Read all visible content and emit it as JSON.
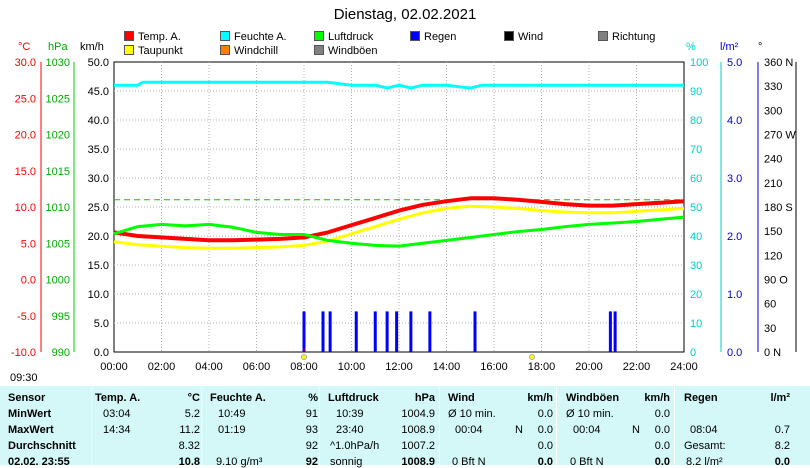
{
  "title": "Dienstag, 02.02.2021",
  "current_time": "09:30",
  "legend": [
    {
      "label": "Temp. A.",
      "color": "#ff0000"
    },
    {
      "label": "Taupunkt",
      "color": "#ffff00"
    },
    {
      "label": "Feuchte A.",
      "color": "#00ffff"
    },
    {
      "label": "Windchill",
      "color": "#ff8000"
    },
    {
      "label": "Luftdruck",
      "color": "#00ff00"
    },
    {
      "label": "Windböen",
      "color": "#808080"
    },
    {
      "label": "Regen",
      "color": "#0000ff"
    },
    {
      "label": "Wind",
      "color": "#000000"
    },
    {
      "label": "Richtung",
      "color": "#808080"
    }
  ],
  "units": {
    "temp": "°C",
    "pressure": "hPa",
    "wind": "km/h",
    "humidity": "%",
    "rain": "l/m²",
    "direction": "°"
  },
  "chart_data": {
    "type": "line",
    "x_ticks": [
      "00:00",
      "02:00",
      "04:00",
      "06:00",
      "08:00",
      "10:00",
      "12:00",
      "14:00",
      "16:00",
      "18:00",
      "20:00",
      "22:00",
      "24:00"
    ],
    "axes": {
      "temp": {
        "ticks": [
          "30.0",
          "25.0",
          "20.0",
          "15.0",
          "10.0",
          "5.0",
          "0.0",
          "-5.0",
          "-10.0"
        ],
        "range": [
          -10,
          30
        ],
        "color": "#ff0000"
      },
      "pressure": {
        "ticks": [
          "1030",
          "1025",
          "1020",
          "1015",
          "1010",
          "1005",
          "1000",
          "995",
          "990"
        ],
        "range": [
          990,
          1030
        ],
        "color": "#00aa00"
      },
      "wind": {
        "ticks": [
          "50.0",
          "45.0",
          "40.0",
          "35.0",
          "30.0",
          "25.0",
          "20.0",
          "15.0",
          "10.0",
          "5.0",
          "0.0"
        ],
        "range": [
          0,
          50
        ],
        "color": "#000000"
      },
      "humidity": {
        "ticks": [
          "100",
          "90",
          "80",
          "70",
          "60",
          "50",
          "40",
          "30",
          "20",
          "10",
          "0"
        ],
        "range": [
          0,
          100
        ],
        "color": "#00cccc"
      },
      "rain": {
        "ticks": [
          "5.0",
          "4.0",
          "3.0",
          "2.0",
          "1.0",
          "0.0"
        ],
        "range": [
          0,
          5
        ],
        "color": "#0000cc"
      },
      "direction": {
        "ticks": [
          "360 N",
          "330",
          "300",
          "270 W",
          "240",
          "210",
          "180 S",
          "150",
          "120",
          "90 O",
          "60",
          "30",
          "0 N"
        ],
        "range": [
          0,
          360
        ],
        "color": "#000000"
      }
    },
    "series": [
      {
        "name": "Temp. A.",
        "axis": "temp",
        "color": "#ff0000",
        "width": 4,
        "x": [
          0,
          1,
          2,
          3,
          4,
          5,
          6,
          7,
          8,
          9,
          10,
          11,
          12,
          13,
          14,
          15,
          16,
          17,
          18,
          19,
          20,
          21,
          22,
          23,
          24
        ],
        "y": [
          6.5,
          6.0,
          5.8,
          5.6,
          5.4,
          5.4,
          5.5,
          5.6,
          5.8,
          6.5,
          7.5,
          8.5,
          9.5,
          10.3,
          10.8,
          11.2,
          11.2,
          11.0,
          10.7,
          10.4,
          10.2,
          10.2,
          10.4,
          10.6,
          10.8
        ]
      },
      {
        "name": "Taupunkt",
        "axis": "temp",
        "color": "#ffff00",
        "width": 3,
        "x": [
          0,
          1,
          2,
          3,
          4,
          5,
          6,
          7,
          8,
          9,
          10,
          11,
          12,
          13,
          14,
          15,
          16,
          17,
          18,
          19,
          20,
          21,
          22,
          23,
          24
        ],
        "y": [
          5.2,
          4.8,
          4.6,
          4.4,
          4.3,
          4.3,
          4.4,
          4.5,
          4.7,
          5.3,
          6.3,
          7.3,
          8.3,
          9.2,
          9.8,
          10.1,
          10.0,
          9.8,
          9.5,
          9.3,
          9.2,
          9.2,
          9.4,
          9.6,
          9.8
        ]
      },
      {
        "name": "Feuchte A.",
        "axis": "humidity",
        "color": "#00ffff",
        "width": 3,
        "x": [
          0,
          1,
          1.2,
          2,
          4,
          6,
          8,
          9,
          10,
          11,
          11.5,
          12,
          12.5,
          13,
          14,
          15,
          15.5,
          16,
          18,
          20,
          22,
          24
        ],
        "y": [
          92,
          92,
          93,
          93,
          93,
          93,
          93,
          93,
          92,
          92,
          91,
          92,
          91,
          92,
          92,
          91,
          92,
          92,
          92,
          92,
          92,
          92
        ]
      },
      {
        "name": "Luftdruck",
        "axis": "pressure",
        "color": "#00ff00",
        "width": 3,
        "x": [
          0,
          1,
          2,
          3,
          4,
          5,
          6,
          7,
          8,
          9,
          10,
          11,
          12,
          13,
          14,
          15,
          16,
          17,
          18,
          19,
          20,
          21,
          22,
          23,
          24
        ],
        "y": [
          1006.3,
          1007.3,
          1007.6,
          1007.4,
          1007.6,
          1007.2,
          1006.5,
          1006.2,
          1006.2,
          1005.4,
          1005.0,
          1004.7,
          1004.6,
          1005.0,
          1005.4,
          1005.8,
          1006.2,
          1006.6,
          1006.9,
          1007.3,
          1007.6,
          1007.8,
          1008.0,
          1008.3,
          1008.6
        ]
      }
    ],
    "rain_bars": {
      "axis": "rain",
      "color": "#0000ff",
      "x": [
        8.0,
        8.8,
        9.1,
        10.2,
        11.0,
        11.5,
        11.9,
        12.5,
        13.3,
        15.2,
        20.9,
        21.1
      ],
      "y": [
        0.7,
        0.7,
        0.7,
        0.7,
        0.7,
        0.7,
        0.7,
        0.7,
        0.7,
        0.7,
        0.7,
        0.7
      ]
    },
    "reference_line": {
      "axis": "temp",
      "value": 11.0,
      "color": "#00cc00",
      "style": "dashed"
    }
  },
  "summary": {
    "row_labels": [
      "Sensor",
      "MinWert",
      "MaxWert",
      "Durchschnitt",
      "02.02. 23:55"
    ],
    "headers": [
      {
        "label": "Temp. A.",
        "unit": "°C"
      },
      {
        "label": "Feuchte A.",
        "unit": "%"
      },
      {
        "label": "Luftdruck",
        "unit": "hPa"
      },
      {
        "label": "Wind",
        "unit": "km/h"
      },
      {
        "label": "Windböen",
        "unit": "km/h"
      },
      {
        "label": "Regen",
        "unit": "l/m²"
      }
    ],
    "temp": {
      "min_time": "03:04",
      "min": "5.2",
      "max_time": "14:34",
      "max": "11.2",
      "avg": "8.32",
      "cur": "10.8"
    },
    "humidity": {
      "min_time": "10:49",
      "min": "91",
      "max_time": "01:19",
      "max": "93",
      "avg": "92",
      "cur_extra": "9.10 g/m³",
      "cur": "92"
    },
    "pressure": {
      "min_time": "10:39",
      "min": "1004.9",
      "max_time": "23:40",
      "max": "1008.9",
      "avg_label": "^1.0hPa/h",
      "avg": "1007.2",
      "cur_label": "sonnig",
      "cur": "1008.9"
    },
    "wind": {
      "min_label": "Ø 10 min.",
      "min": "0.0",
      "max_time": "00:04",
      "max_dir": "N",
      "max": "0.0",
      "avg": "0.0",
      "cur_label": "0 Bft N",
      "cur": "0.0"
    },
    "gust": {
      "min_label": "Ø 10 min.",
      "min": "0.0",
      "max_time": "00:04",
      "max_dir": "N",
      "max": "0.0",
      "avg": "0.0",
      "cur_label": "0 Bft N",
      "cur": "0.0"
    },
    "rain": {
      "max_time": "08:04",
      "max": "0.7",
      "avg_label": "Gesamt:",
      "avg": "8.2",
      "cur_label": "8.2 l/m²",
      "cur": "0.0"
    }
  }
}
